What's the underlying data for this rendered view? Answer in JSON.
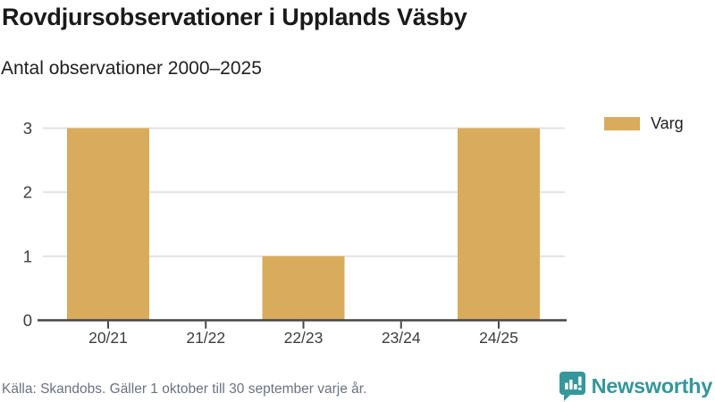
{
  "header": {
    "title": "Rovdjursobservationer i Upplands Väsby",
    "subtitle": "Antal observationer 2000–2025"
  },
  "chart_data": {
    "type": "bar",
    "categories": [
      "20/21",
      "21/22",
      "22/23",
      "23/24",
      "24/25"
    ],
    "series": [
      {
        "name": "Varg",
        "values": [
          3,
          0,
          1,
          0,
          3
        ],
        "color": "#d9ab5c"
      }
    ],
    "title": "Rovdjursobservationer i Upplands Väsby",
    "subtitle": "Antal observationer 2000–2025",
    "xlabel": "",
    "ylabel": "",
    "ylim": [
      0,
      3
    ],
    "yticks": [
      0,
      1,
      2,
      3
    ],
    "grid": true,
    "legend_position": "top-right"
  },
  "legend": {
    "items": [
      {
        "label": "Varg",
        "color": "#d9ab5c"
      }
    ]
  },
  "footer": {
    "source": "Källa: Skandobs. Gäller 1 oktober till 30 september varje år.",
    "brand": "Newsworthy"
  },
  "colors": {
    "bar": "#d9ab5c",
    "teal": "#35979b",
    "grid": "#e3e3e3",
    "axis": "#474747",
    "tick_text": "#3d3d3d",
    "text": "#1a1a1a",
    "muted": "#6b7280"
  }
}
